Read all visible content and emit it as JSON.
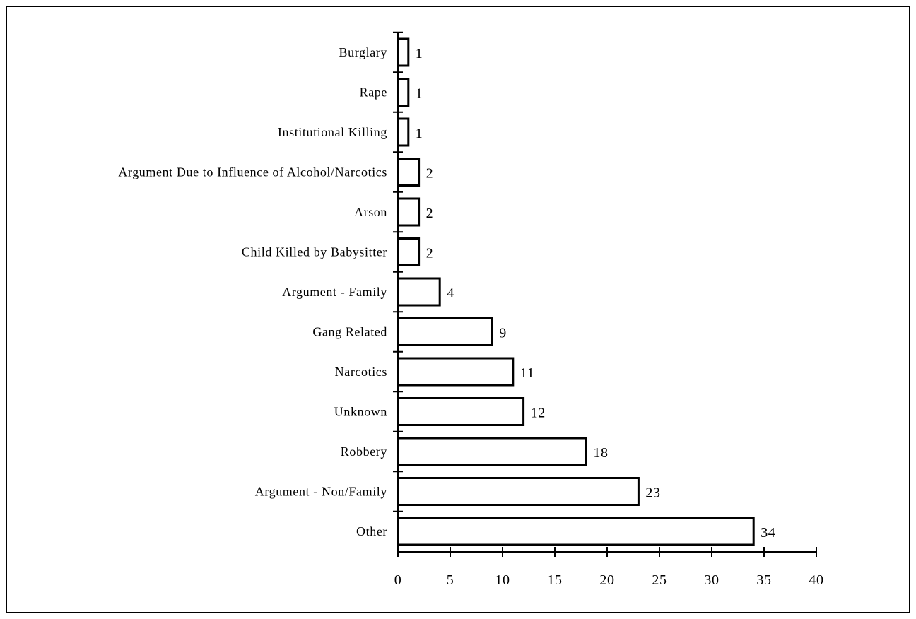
{
  "chart_data": {
    "type": "bar",
    "orientation": "horizontal",
    "categories": [
      "Burglary",
      "Rape",
      "Institutional Killing",
      "Argument Due to Influence of Alcohol/Narcotics",
      "Arson",
      "Child Killed by Babysitter",
      "Argument - Family",
      "Gang Related",
      "Narcotics",
      "Unknown",
      "Robbery",
      "Argument - Non/Family",
      "Other"
    ],
    "values": [
      1,
      1,
      1,
      2,
      2,
      2,
      4,
      9,
      11,
      12,
      18,
      23,
      34
    ],
    "data_labels": [
      "1",
      "1",
      "1",
      "2",
      "2",
      "2",
      "4",
      "9",
      "11",
      "12",
      "18",
      "23",
      "34"
    ],
    "title": "",
    "xlabel": "",
    "ylabel": "",
    "xlim": [
      0,
      40
    ],
    "x_ticks": [
      0,
      5,
      10,
      15,
      20,
      25,
      30,
      35,
      40
    ],
    "x_tick_labels": [
      "0",
      "5",
      "10",
      "15",
      "20",
      "25",
      "30",
      "35",
      "40"
    ],
    "grid": false,
    "legend": "none",
    "bar_fill": "#ffffff",
    "bar_stroke": "#000000"
  }
}
